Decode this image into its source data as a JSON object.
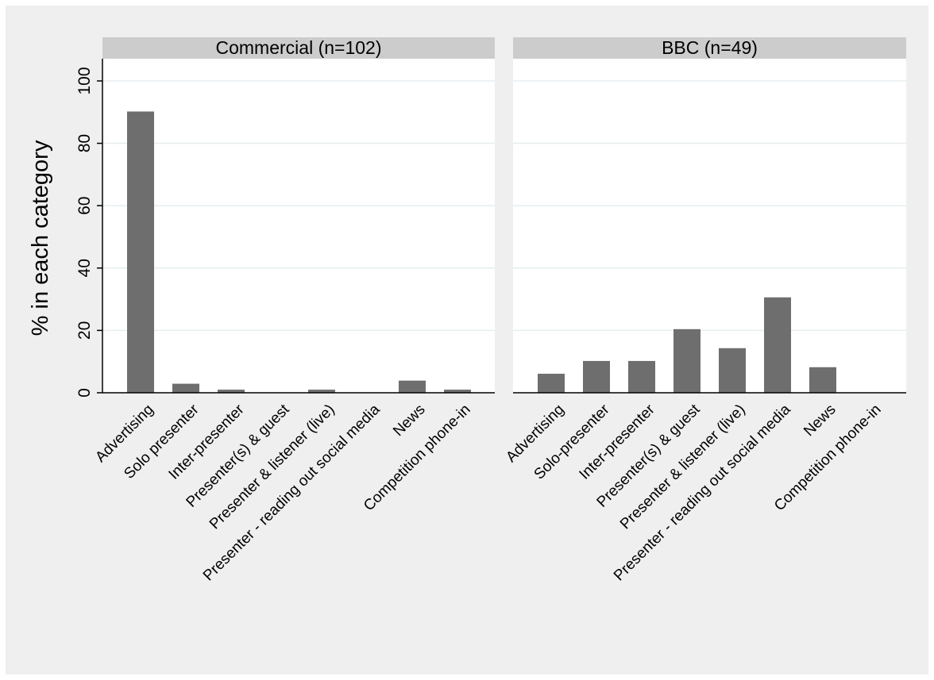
{
  "chart_data": {
    "type": "bar",
    "ylabel": "% in each category",
    "ylim": [
      0,
      100
    ],
    "yticks": [
      0,
      20,
      40,
      60,
      80,
      100
    ],
    "grid": true,
    "colors": {
      "bar": "#6e6e6e",
      "strip": "#cccccc",
      "background": "#efefef",
      "plot": "#ffffff",
      "grid": "#e6eef0"
    },
    "panels": [
      {
        "title": "Commercial (n=102)",
        "categories": [
          "Advertising",
          "Solo presenter",
          "Inter-presenter",
          "Presenter(s) & guest",
          "Presenter & listener (live)",
          "Presenter - reading out social media",
          "News",
          "Competition phone-in"
        ],
        "values": [
          90.2,
          2.9,
          1.0,
          0,
          1.0,
          0,
          3.9,
          1.0
        ]
      },
      {
        "title": "BBC (n=49)",
        "categories": [
          "Advertising",
          "Solo-presenter",
          "Inter-presenter",
          "Presenter(s) & guest",
          "Presenter & listener (live)",
          "Presenter - reading out social media",
          "News",
          "Competition phone-in"
        ],
        "values": [
          6.1,
          10.2,
          10.2,
          20.4,
          14.3,
          30.6,
          8.2,
          0
        ]
      }
    ]
  }
}
